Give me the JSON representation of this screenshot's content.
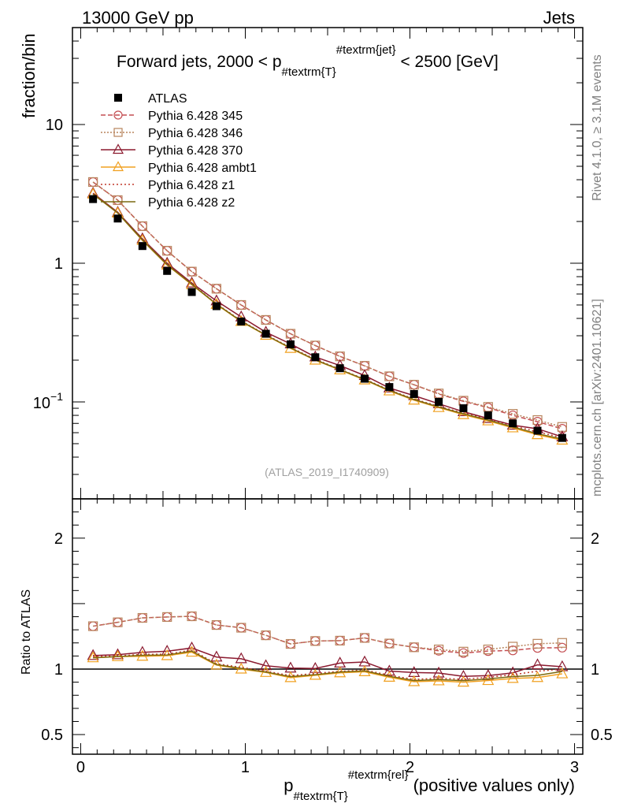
{
  "header": {
    "left": "13000 GeV pp",
    "right": "Jets"
  },
  "side_labels": {
    "rivet": "Rivet 4.1.0, ≥ 3.1M events",
    "mcplots": "mcplots.cern.ch [arXiv:2401.10621]"
  },
  "analysis_id": "(ATLAS_2019_I1740909)",
  "chart_data": {
    "type": "line",
    "title": "Forward jets, 2000 < p_{#textrm{T}}^{#textrm{jet}} < 2500 [GeV]",
    "title_parts": {
      "pre": "Forward jets, 2000 < p",
      "sub": "#textrm{T}",
      "sup": "#textrm{jet}",
      "post": " < 2500 [GeV]"
    },
    "xlabel_parts": {
      "main": "p",
      "sub": "#textrm{T}",
      "sup": "#textrm{rel}",
      "post": " (positive values only)"
    },
    "ylabel": "fraction/bin",
    "ratio_ylabel": "Ratio to ATLAS",
    "xlim": [
      -0.05,
      3.05
    ],
    "ylim": [
      0.02,
      50
    ],
    "ratio_ylim": [
      0.35,
      2.3
    ],
    "x_ticks": [
      {
        "value": 0,
        "label": "0"
      },
      {
        "value": 1,
        "label": "1"
      },
      {
        "value": 2,
        "label": "2"
      },
      {
        "value": 3,
        "label": "3"
      }
    ],
    "y_ticks": [
      {
        "value": 10,
        "label": "10"
      },
      {
        "value": 1,
        "label": "1"
      },
      {
        "value": 0.1,
        "label": "10",
        "exp": "−1"
      }
    ],
    "ratio_ticks": [
      {
        "value": 2,
        "label": "2"
      },
      {
        "value": 1,
        "label": "1"
      },
      {
        "value": 0.5,
        "label": "0.5"
      }
    ],
    "x": [
      0.075,
      0.225,
      0.375,
      0.525,
      0.675,
      0.825,
      0.975,
      1.125,
      1.275,
      1.425,
      1.575,
      1.725,
      1.875,
      2.025,
      2.175,
      2.325,
      2.475,
      2.625,
      2.775,
      2.925
    ],
    "data": {
      "name": "ATLAS",
      "values": [
        2.9,
        2.1,
        1.33,
        0.88,
        0.62,
        0.49,
        0.38,
        0.31,
        0.26,
        0.21,
        0.175,
        0.147,
        0.128,
        0.114,
        0.1,
        0.09,
        0.08,
        0.07,
        0.062,
        0.055
      ]
    },
    "series": [
      {
        "name": "Pythia 6.428 345",
        "color": "#c44e52",
        "dash": "6,3",
        "marker": "circle",
        "values": [
          3.85,
          2.85,
          1.85,
          1.23,
          0.87,
          0.655,
          0.5,
          0.39,
          0.31,
          0.255,
          0.213,
          0.182,
          0.153,
          0.133,
          0.114,
          0.101,
          0.091,
          0.08,
          0.072,
          0.064
        ]
      },
      {
        "name": "Pythia 6.428 346",
        "color": "#b8845c",
        "dash": "2,2",
        "marker": "square",
        "values": [
          3.85,
          2.85,
          1.85,
          1.23,
          0.87,
          0.655,
          0.5,
          0.39,
          0.31,
          0.255,
          0.213,
          0.182,
          0.153,
          0.133,
          0.115,
          0.102,
          0.092,
          0.082,
          0.074,
          0.066
        ]
      },
      {
        "name": "Pythia 6.428 370",
        "color": "#8b1a2f",
        "dash": "",
        "marker": "triangle",
        "values": [
          3.2,
          2.33,
          1.5,
          1.0,
          0.72,
          0.535,
          0.41,
          0.318,
          0.262,
          0.211,
          0.183,
          0.155,
          0.126,
          0.111,
          0.097,
          0.085,
          0.076,
          0.068,
          0.064,
          0.056
        ]
      },
      {
        "name": "Pythia 6.428 ambt1",
        "color": "#f0a020",
        "dash": "",
        "marker": "triangle",
        "values": [
          3.15,
          2.3,
          1.46,
          0.97,
          0.7,
          0.505,
          0.38,
          0.302,
          0.243,
          0.2,
          0.17,
          0.144,
          0.12,
          0.103,
          0.091,
          0.081,
          0.073,
          0.065,
          0.058,
          0.053
        ]
      },
      {
        "name": "Pythia 6.428 z1",
        "color": "#c0392b",
        "dash": "2,3",
        "marker": "none",
        "values": [
          3.18,
          2.31,
          1.48,
          0.98,
          0.71,
          0.51,
          0.385,
          0.305,
          0.247,
          0.203,
          0.172,
          0.146,
          0.122,
          0.105,
          0.093,
          0.083,
          0.075,
          0.067,
          0.061,
          0.055
        ]
      },
      {
        "name": "Pythia 6.428 z2",
        "color": "#7a6a10",
        "dash": "",
        "marker": "none",
        "values": [
          3.15,
          2.3,
          1.47,
          0.975,
          0.705,
          0.507,
          0.382,
          0.303,
          0.245,
          0.201,
          0.171,
          0.145,
          0.121,
          0.104,
          0.092,
          0.082,
          0.074,
          0.066,
          0.059,
          0.054
        ]
      }
    ],
    "legend": {
      "placement": "top-left"
    }
  }
}
